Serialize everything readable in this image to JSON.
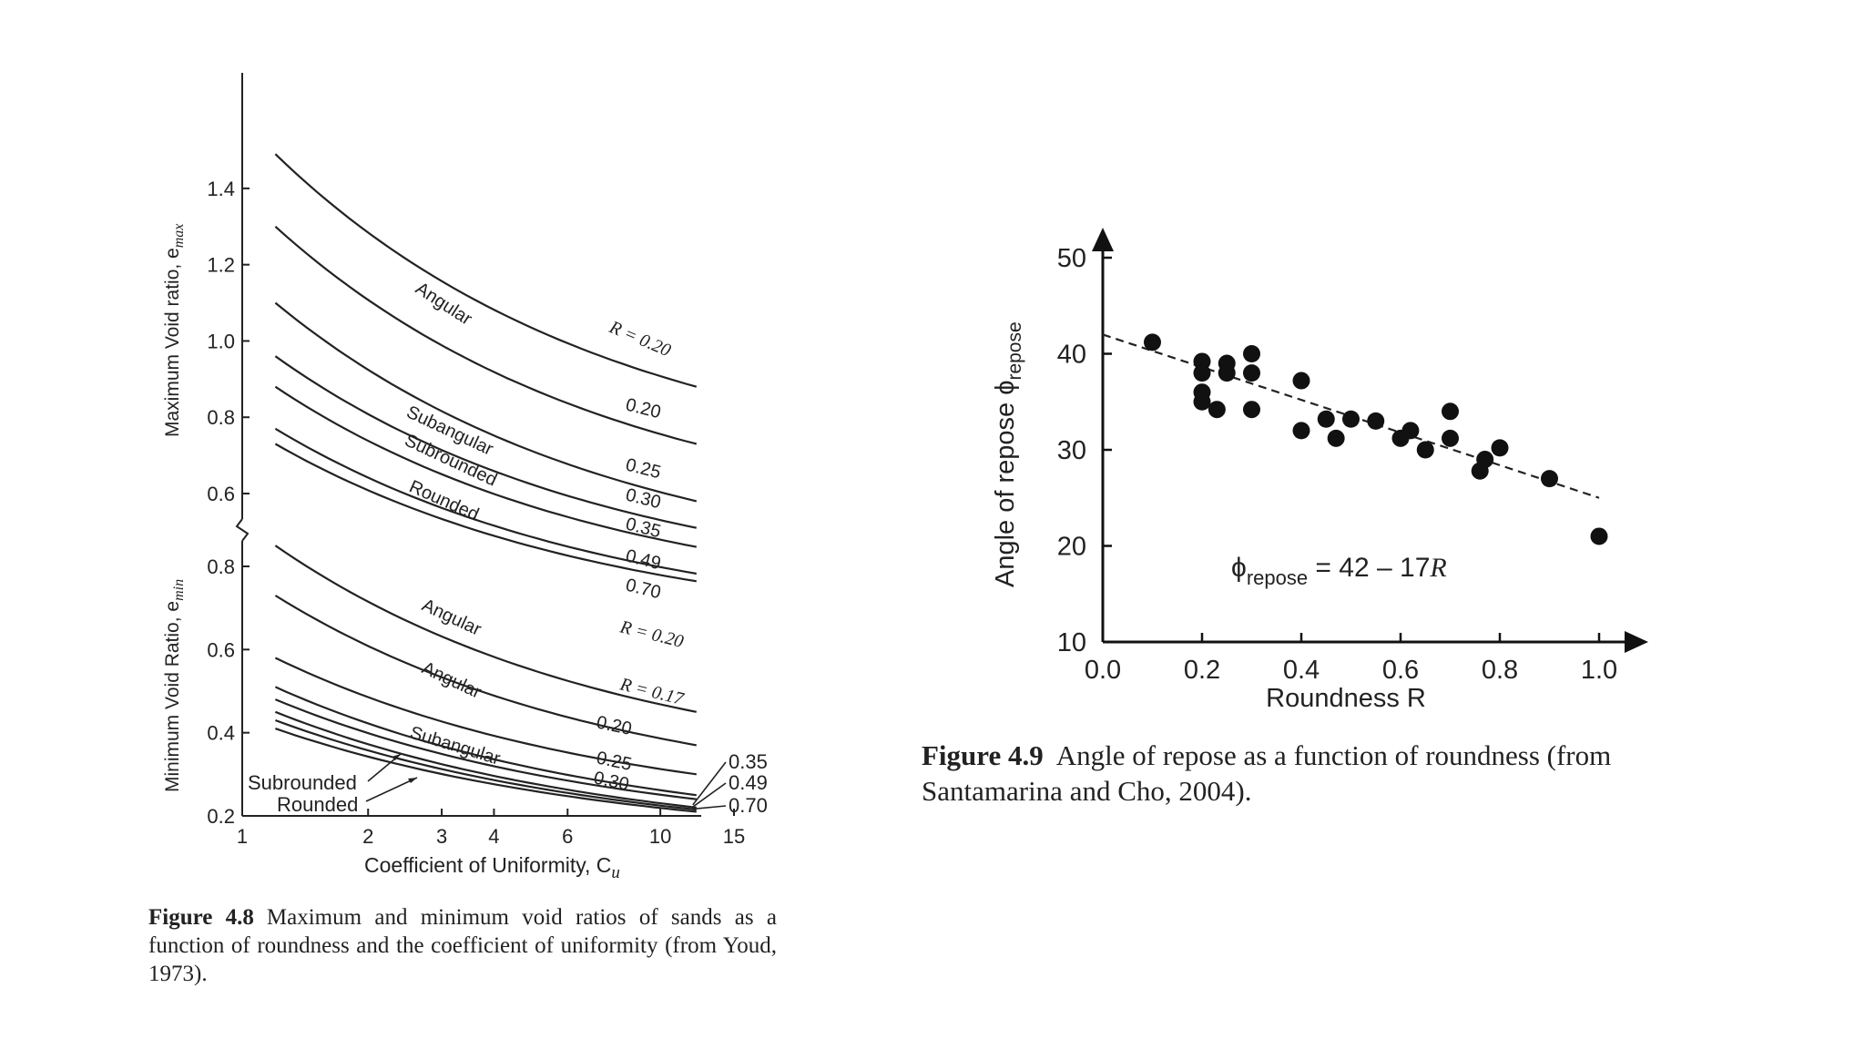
{
  "chart_data": [
    {
      "type": "line",
      "xscale": "log",
      "xlabel": "Coefficient of Uniformity, C",
      "xlabel_sub": "u",
      "xticks": [
        "1",
        "2",
        "3",
        "4",
        "6",
        "10",
        "15"
      ],
      "xtick_values": [
        1,
        2,
        3,
        4,
        6,
        10,
        15
      ],
      "upper_panel": {
        "ylabel": "Maximum Void ratio, e",
        "ylabel_sub": "max",
        "ylim": [
          0.6,
          1.5
        ],
        "yticks": [
          "0.6",
          "0.8",
          "1.0",
          "1.2",
          "1.4"
        ],
        "ytick_values": [
          0.6,
          0.8,
          1.0,
          1.2,
          1.4
        ],
        "series": [
          {
            "label": "R = 0.20",
            "x": [
              1.2,
              12.2
            ],
            "y": [
              1.49,
              0.88
            ]
          },
          {
            "label": "0.20",
            "x": [
              1.2,
              12.2
            ],
            "y": [
              1.3,
              0.73
            ]
          },
          {
            "label": "0.25",
            "x": [
              1.2,
              12.2
            ],
            "y": [
              1.1,
              0.58
            ]
          },
          {
            "label": "0.30",
            "x": [
              1.2,
              12.2
            ],
            "y": [
              0.96,
              0.51
            ]
          },
          {
            "label": "0.35",
            "x": [
              1.2,
              12.2
            ],
            "y": [
              0.88,
              0.46
            ]
          },
          {
            "label": "0.49",
            "x": [
              1.2,
              12.2
            ],
            "y": [
              0.77,
              0.39
            ]
          },
          {
            "label": "0.70",
            "x": [
              1.2,
              12.2
            ],
            "y": [
              0.73,
              0.37
            ]
          }
        ],
        "annotations": [
          {
            "text": "Angular",
            "near": "0.20"
          },
          {
            "text": "Subangular",
            "near": "0.25"
          },
          {
            "text": "Subrounded",
            "near": "0.30"
          },
          {
            "text": "Rounded",
            "near": "0.35"
          }
        ]
      },
      "lower_panel": {
        "ylabel": "Minimum Void Ratio, e",
        "ylabel_sub": "min",
        "ylim": [
          0.2,
          0.8
        ],
        "yticks": [
          "0.2",
          "0.4",
          "0.6",
          "0.8"
        ],
        "ytick_values": [
          0.2,
          0.4,
          0.6,
          0.8
        ],
        "series": [
          {
            "label": "R = 0.20",
            "x": [
              1.2,
              12.2
            ],
            "y": [
              0.85,
              0.45
            ]
          },
          {
            "label": "R = 0.17",
            "x": [
              1.2,
              12.2
            ],
            "y": [
              0.73,
              0.37
            ]
          },
          {
            "label": "0.20",
            "x": [
              1.2,
              12.2
            ],
            "y": [
              0.58,
              0.3
            ]
          },
          {
            "label": "0.25",
            "x": [
              1.2,
              12.2
            ],
            "y": [
              0.51,
              0.25
            ]
          },
          {
            "label": "0.30",
            "x": [
              1.2,
              12.2
            ],
            "y": [
              0.48,
              0.24
            ]
          },
          {
            "label": "0.35",
            "x": [
              1.2,
              12.2
            ],
            "y": [
              0.45,
              0.22
            ]
          },
          {
            "label": "0.49",
            "x": [
              1.2,
              12.2
            ],
            "y": [
              0.43,
              0.215
            ]
          },
          {
            "label": "0.70",
            "x": [
              1.2,
              12.2
            ],
            "y": [
              0.41,
              0.21
            ]
          }
        ],
        "annotations": [
          {
            "text": "Angular",
            "near": "R = 0.20"
          },
          {
            "text": "Angular",
            "near": "R = 0.17"
          },
          {
            "text": "Subangular",
            "near": "0.20"
          },
          {
            "text": "Subrounded",
            "near": "0.35"
          },
          {
            "text": "Rounded",
            "near": "0.49"
          }
        ]
      }
    },
    {
      "type": "scatter",
      "xlabel": "Roundness R",
      "ylabel": "Angle of repose ϕ",
      "ylabel_sub": "repose",
      "xlim": [
        0.0,
        1.0
      ],
      "ylim": [
        10,
        50
      ],
      "xticks": [
        "0.0",
        "0.2",
        "0.4",
        "0.6",
        "0.8",
        "1.0"
      ],
      "xtick_values": [
        0.0,
        0.2,
        0.4,
        0.6,
        0.8,
        1.0
      ],
      "yticks": [
        "10",
        "20",
        "30",
        "40",
        "50"
      ],
      "ytick_values": [
        10,
        20,
        30,
        40,
        50
      ],
      "points": [
        {
          "x": 0.1,
          "y": 41.2
        },
        {
          "x": 0.2,
          "y": 39.2
        },
        {
          "x": 0.2,
          "y": 38.0
        },
        {
          "x": 0.2,
          "y": 36.0
        },
        {
          "x": 0.2,
          "y": 35.0
        },
        {
          "x": 0.23,
          "y": 34.2
        },
        {
          "x": 0.25,
          "y": 39.0
        },
        {
          "x": 0.25,
          "y": 38.0
        },
        {
          "x": 0.3,
          "y": 40.0
        },
        {
          "x": 0.3,
          "y": 38.0
        },
        {
          "x": 0.3,
          "y": 34.2
        },
        {
          "x": 0.4,
          "y": 37.2
        },
        {
          "x": 0.4,
          "y": 32.0
        },
        {
          "x": 0.45,
          "y": 33.2
        },
        {
          "x": 0.47,
          "y": 31.2
        },
        {
          "x": 0.5,
          "y": 33.2
        },
        {
          "x": 0.55,
          "y": 33.0
        },
        {
          "x": 0.6,
          "y": 31.2
        },
        {
          "x": 0.62,
          "y": 32.0
        },
        {
          "x": 0.65,
          "y": 30.0
        },
        {
          "x": 0.7,
          "y": 34.0
        },
        {
          "x": 0.7,
          "y": 31.2
        },
        {
          "x": 0.76,
          "y": 27.8
        },
        {
          "x": 0.77,
          "y": 29.0
        },
        {
          "x": 0.8,
          "y": 30.2
        },
        {
          "x": 0.9,
          "y": 27.0
        },
        {
          "x": 1.0,
          "y": 21.0
        }
      ],
      "fit_line": {
        "intercept": 42,
        "slope": -17
      },
      "equation": {
        "lhs": "ϕ",
        "lhs_sub": "repose",
        "rhs": " = 42 – 17",
        "var": "R"
      }
    }
  ],
  "captions": {
    "fig48": {
      "label": "Figure 4.8",
      "text": "Maximum and minimum void ratios of sands as a function of roundness and the coefficient of uniformity (from Youd, 1973)."
    },
    "fig49": {
      "label": "Figure 4.9",
      "text": "Angle of repose as a function of roundness (from Santamarina and Cho, 2004)."
    }
  }
}
